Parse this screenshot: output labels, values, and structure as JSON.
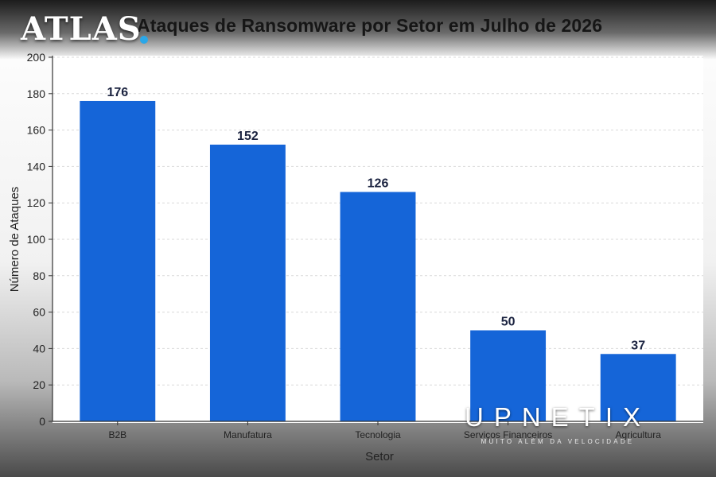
{
  "logo": {
    "name": "ATLAS",
    "accent_color": "#2aa7e8"
  },
  "watermark": {
    "name": "UPNETIX",
    "tagline": "MUITO ALÉM DA VELOCIDADE"
  },
  "chart_data": {
    "type": "bar",
    "title": "Ataques de Ransomware por Setor em Julho de 2026",
    "xlabel": "Setor",
    "ylabel": "Número de Ataques",
    "categories": [
      "B2B",
      "Manufatura",
      "Tecnologia",
      "Serviços Financeiros",
      "Agricultura"
    ],
    "values": [
      176,
      152,
      126,
      50,
      37
    ],
    "data_labels": [
      "176",
      "152",
      "126",
      "50",
      "37"
    ],
    "ylim": [
      0,
      200
    ],
    "yticks": [
      0,
      20,
      40,
      60,
      80,
      100,
      120,
      140,
      160,
      180,
      200
    ],
    "bar_color": "#1565d8",
    "grid": true,
    "legend": "none"
  }
}
